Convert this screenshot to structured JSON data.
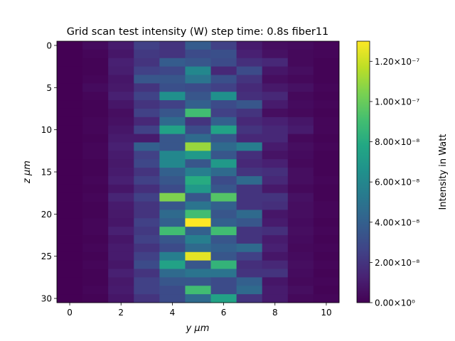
{
  "chart_data": {
    "type": "heatmap",
    "title": "Grid scan test intensity (W) step time: 0.8s fiber11",
    "xlabel": "y μm",
    "ylabel": "z μm",
    "colorbar_label": "Intensity in Watt",
    "colormap": "viridis",
    "x_values": [
      0,
      1,
      2,
      3,
      4,
      5,
      6,
      7,
      8,
      9,
      10
    ],
    "y_values": [
      0,
      1,
      2,
      3,
      4,
      5,
      6,
      7,
      8,
      9,
      10,
      11,
      12,
      13,
      14,
      15,
      16,
      17,
      18,
      19,
      20,
      21,
      22,
      23,
      24,
      25,
      26,
      27,
      28,
      29,
      30
    ],
    "x_ticks": [
      0,
      2,
      4,
      6,
      8,
      10
    ],
    "y_ticks": [
      0,
      5,
      10,
      15,
      20,
      25,
      30
    ],
    "xlim": [
      -0.5,
      10.5
    ],
    "ylim": [
      30.5,
      -0.5
    ],
    "clim": [
      0,
      1.3e-07
    ],
    "colorbar_ticks": [
      {
        "value": 0,
        "label": "0.00×10⁰"
      },
      {
        "value": 2e-08,
        "label": "2.00×10⁻⁸"
      },
      {
        "value": 4e-08,
        "label": "4.00×10⁻⁸"
      },
      {
        "value": 6e-08,
        "label": "6.00×10⁻⁸"
      },
      {
        "value": 8e-08,
        "label": "8.00×10⁻⁸"
      },
      {
        "value": 1e-07,
        "label": "1.00×10⁻⁷"
      },
      {
        "value": 1.2e-07,
        "label": "1.20×10⁻⁷"
      }
    ],
    "values": [
      [
        0.0,
        4e-09,
        1e-08,
        2.5e-08,
        2e-08,
        3.8e-08,
        2.5e-08,
        1e-08,
        5e-09,
        4e-09,
        2e-09
      ],
      [
        0.0,
        2e-09,
        8e-09,
        2.2e-08,
        2e-08,
        3e-08,
        3.2e-08,
        1.2e-08,
        6e-09,
        3e-09,
        2e-09
      ],
      [
        0.0,
        1e-09,
        1.2e-08,
        2e-08,
        3.8e-08,
        3.5e-08,
        3e-08,
        1.8e-08,
        1.5e-08,
        3e-09,
        1e-09
      ],
      [
        0.0,
        1e-09,
        1.1e-08,
        2.5e-08,
        2.8e-08,
        6e-08,
        1.5e-08,
        3e-08,
        8e-09,
        5e-09,
        1e-09
      ],
      [
        0.0,
        2e-09,
        8e-09,
        3.5e-08,
        3.5e-08,
        5e-08,
        3.2e-08,
        2e-08,
        5e-09,
        3e-09,
        1e-09
      ],
      [
        0.0,
        4e-09,
        9e-09,
        2e-08,
        3.2e-08,
        3e-08,
        2.5e-08,
        1.6e-08,
        9e-09,
        6e-09,
        2e-09
      ],
      [
        0.0,
        2e-09,
        1.2e-08,
        2.6e-08,
        6.5e-08,
        3.5e-08,
        6.5e-08,
        1.8e-08,
        1.5e-08,
        3e-09,
        1e-09
      ],
      [
        0.0,
        1e-09,
        8e-09,
        2e-08,
        2.5e-08,
        4e-08,
        3e-08,
        3.5e-08,
        1e-08,
        4e-09,
        2e-09
      ],
      [
        0.0,
        1e-09,
        5e-09,
        2.5e-08,
        3.5e-08,
        9e-08,
        2.5e-08,
        2e-08,
        5e-09,
        3e-09,
        1e-09
      ],
      [
        0.0,
        2e-09,
        6e-09,
        1.5e-08,
        4.5e-08,
        2e-08,
        4e-08,
        1.5e-08,
        1.2e-08,
        8e-09,
        2e-09
      ],
      [
        0.0,
        2e-09,
        8e-09,
        2.5e-08,
        7.5e-08,
        3e-08,
        7.5e-08,
        2e-08,
        1.5e-08,
        1e-08,
        2e-09
      ],
      [
        0.0,
        1e-09,
        1e-08,
        1e-08,
        3.5e-08,
        4.5e-08,
        3.5e-08,
        1.5e-08,
        1.5e-08,
        3e-09,
        1e-09
      ],
      [
        0.0,
        2e-09,
        1.2e-08,
        4e-08,
        3.5e-08,
        1.1e-07,
        4.5e-08,
        5.5e-08,
        1e-08,
        5e-09,
        2e-09
      ],
      [
        0.0,
        2e-09,
        1e-08,
        2.5e-08,
        6e-08,
        7e-08,
        3.5e-08,
        1.8e-08,
        7e-09,
        4e-09,
        1e-09
      ],
      [
        0.0,
        1e-09,
        9e-09,
        2.8e-08,
        6e-08,
        3.5e-08,
        7e-08,
        1.5e-08,
        1.2e-08,
        3e-09,
        1e-09
      ],
      [
        0.0,
        1e-09,
        1e-08,
        2e-08,
        4e-08,
        5.5e-08,
        4.5e-08,
        2e-08,
        1.8e-08,
        5e-09,
        1e-09
      ],
      [
        0.0,
        2e-09,
        1.2e-08,
        2.5e-08,
        3.5e-08,
        8e-08,
        3e-08,
        4.5e-08,
        1.5e-08,
        5e-09,
        2e-09
      ],
      [
        0.0,
        1e-09,
        8e-09,
        1.8e-08,
        3e-08,
        7e-08,
        3.5e-08,
        2e-08,
        9e-09,
        3e-09,
        1e-09
      ],
      [
        0.0,
        2e-09,
        1.4e-08,
        2.5e-08,
        1.05e-07,
        3.5e-08,
        9.5e-08,
        2e-08,
        2e-08,
        6e-09,
        1e-09
      ],
      [
        0.0,
        1e-09,
        1e-08,
        2e-08,
        3.5e-08,
        5e-08,
        4e-08,
        2e-08,
        1.8e-08,
        5e-09,
        2e-09
      ],
      [
        0.0,
        1e-09,
        9e-09,
        2e-08,
        4.5e-08,
        9e-08,
        3.5e-08,
        4.5e-08,
        8e-09,
        5e-09,
        2e-09
      ],
      [
        0.0,
        2e-09,
        8e-09,
        2.5e-08,
        4e-08,
        1.3e-07,
        4e-08,
        3.5e-08,
        1e-08,
        4e-09,
        1e-09
      ],
      [
        0.0,
        2e-09,
        1.2e-08,
        2.2e-08,
        9e-08,
        4e-08,
        9e-08,
        2e-08,
        1.8e-08,
        5e-09,
        2e-09
      ],
      [
        0.0,
        1e-09,
        8e-09,
        2.5e-08,
        3.5e-08,
        5.5e-08,
        3.5e-08,
        2e-08,
        1e-08,
        4e-09,
        1e-09
      ],
      [
        0.0,
        2e-09,
        1e-08,
        2e-08,
        3e-08,
        4.5e-08,
        4e-08,
        4.5e-08,
        1.2e-08,
        3e-09,
        2e-09
      ],
      [
        0.0,
        1e-09,
        1e-08,
        2.5e-08,
        5.5e-08,
        1.25e-07,
        3.5e-08,
        2.5e-08,
        8e-09,
        4e-09,
        1e-09
      ],
      [
        0.0,
        2e-09,
        8e-09,
        3e-08,
        7.5e-08,
        3.5e-08,
        8.5e-08,
        1.8e-08,
        1.5e-08,
        5e-09,
        2e-09
      ],
      [
        0.0,
        1e-09,
        1.2e-08,
        2e-08,
        4.5e-08,
        5e-08,
        5e-08,
        2e-08,
        2e-08,
        4e-09,
        1e-09
      ],
      [
        0.0,
        1e-09,
        9e-09,
        2.5e-08,
        3.5e-08,
        3.5e-08,
        3e-08,
        4e-08,
        8e-09,
        3e-09,
        2e-09
      ],
      [
        0.0,
        2e-09,
        1e-08,
        2.5e-08,
        3e-08,
        9e-08,
        3e-08,
        4.5e-08,
        1e-08,
        5e-09,
        1e-09
      ],
      [
        0.0,
        1e-09,
        8e-09,
        2e-08,
        3e-08,
        4.5e-08,
        7.5e-08,
        2e-08,
        1e-08,
        3e-09,
        2e-09
      ]
    ]
  }
}
